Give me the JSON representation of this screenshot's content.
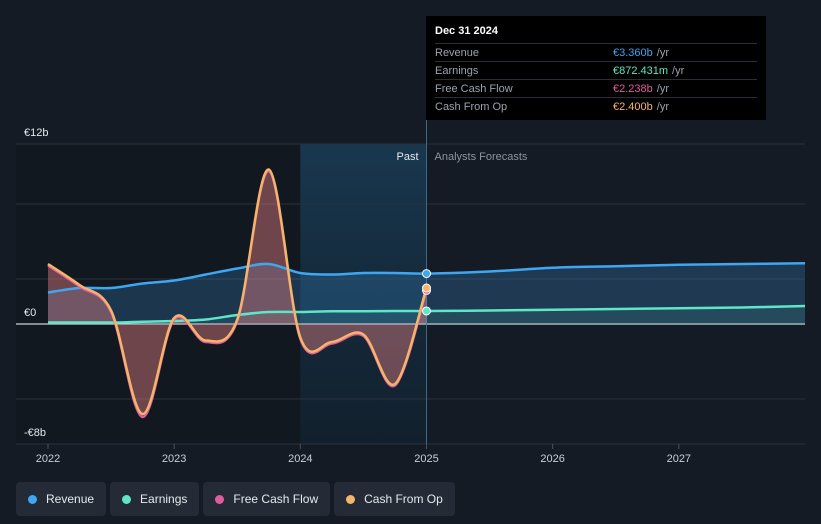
{
  "tooltip": {
    "date": "Dec 31 2024",
    "rows": [
      {
        "label": "Revenue",
        "value": "€3.360b",
        "unit": "/yr",
        "color": "#3ea6f2"
      },
      {
        "label": "Earnings",
        "value": "€872.431m",
        "unit": "/yr",
        "color": "#5ee6c8"
      },
      {
        "label": "Free Cash Flow",
        "value": "€2.238b",
        "unit": "/yr",
        "color": "#e05d9c"
      },
      {
        "label": "Cash From Op",
        "value": "€2.400b",
        "unit": "/yr",
        "color": "#f4b56a"
      }
    ]
  },
  "chart_data": {
    "type": "line",
    "y_top_label": "€12b",
    "y_zero_label": "€0",
    "y_bottom_label": "-€8b",
    "ylim": [
      -8,
      12
    ],
    "xlim": [
      2022,
      2028
    ],
    "x_ticks": [
      "2022",
      "2023",
      "2024",
      "2025",
      "2026",
      "2027"
    ],
    "past_label": "Past",
    "forecast_label": "Analysts Forecasts",
    "divider_x": 2025,
    "shade_start_x": 2024,
    "series": [
      {
        "name": "Revenue",
        "color": "#3ea6f2",
        "x": [
          2022,
          2022.25,
          2022.5,
          2022.75,
          2023,
          2023.25,
          2023.5,
          2023.75,
          2024,
          2024.25,
          2024.5,
          2024.75,
          2025,
          2025.5,
          2026,
          2026.5,
          2027,
          2027.5,
          2028
        ],
        "y": [
          2.1,
          2.4,
          2.4,
          2.7,
          2.9,
          3.3,
          3.7,
          4.0,
          3.4,
          3.3,
          3.4,
          3.4,
          3.36,
          3.5,
          3.75,
          3.85,
          3.95,
          4.0,
          4.05
        ]
      },
      {
        "name": "Earnings",
        "color": "#5ee6c8",
        "x": [
          2022,
          2022.5,
          2022.75,
          2023,
          2023.25,
          2023.5,
          2023.75,
          2024,
          2024.25,
          2024.5,
          2024.75,
          2025,
          2025.5,
          2026,
          2026.5,
          2027,
          2027.5,
          2028
        ],
        "y": [
          0.1,
          0.1,
          0.15,
          0.2,
          0.3,
          0.6,
          0.8,
          0.8,
          0.85,
          0.85,
          0.87,
          0.87,
          0.9,
          0.95,
          1.0,
          1.05,
          1.1,
          1.2
        ]
      },
      {
        "name": "Free Cash Flow",
        "color": "#e05d9c",
        "x": [
          2022,
          2022.25,
          2022.5,
          2022.75,
          2023,
          2023.25,
          2023.5,
          2023.75,
          2024,
          2024.25,
          2024.5,
          2024.75,
          2025
        ],
        "y": [
          3.9,
          2.5,
          0.8,
          -6.2,
          0.3,
          -1.2,
          0.2,
          10.2,
          -1.0,
          -1.3,
          -0.8,
          -4.1,
          2.24
        ]
      },
      {
        "name": "Cash From Op",
        "color": "#f4b56a",
        "x": [
          2022,
          2022.25,
          2022.5,
          2022.75,
          2023,
          2023.25,
          2023.5,
          2023.75,
          2024,
          2024.25,
          2024.5,
          2024.75,
          2025
        ],
        "y": [
          4.0,
          2.6,
          0.9,
          -6.0,
          0.4,
          -1.1,
          0.3,
          10.3,
          -0.9,
          -1.2,
          -0.7,
          -4.0,
          2.4
        ]
      }
    ]
  },
  "legend": [
    {
      "label": "Revenue",
      "color": "#3ea6f2"
    },
    {
      "label": "Earnings",
      "color": "#5ee6c8"
    },
    {
      "label": "Free Cash Flow",
      "color": "#e05d9c"
    },
    {
      "label": "Cash From Op",
      "color": "#f4b56a"
    }
  ]
}
